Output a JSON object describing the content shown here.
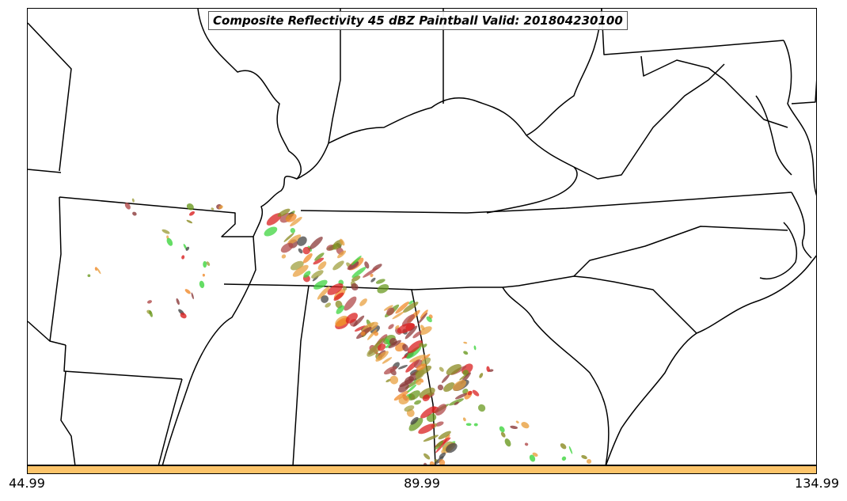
{
  "title": "Composite Reflectivity 45 dBZ Paintball Valid: 201804230100",
  "colorbar": {
    "color": "#fcc46a",
    "ticks": [
      "44.99",
      "89.99",
      "134.99"
    ]
  },
  "colors": {
    "border": "#000000",
    "member_colors": [
      "#8b3a3a",
      "#f08a2a",
      "#8a8a20",
      "#3fd43f",
      "#d92020",
      "#444444",
      "#b04a4a",
      "#6a9a20",
      "#e8a040",
      "#a0a040"
    ]
  }
}
